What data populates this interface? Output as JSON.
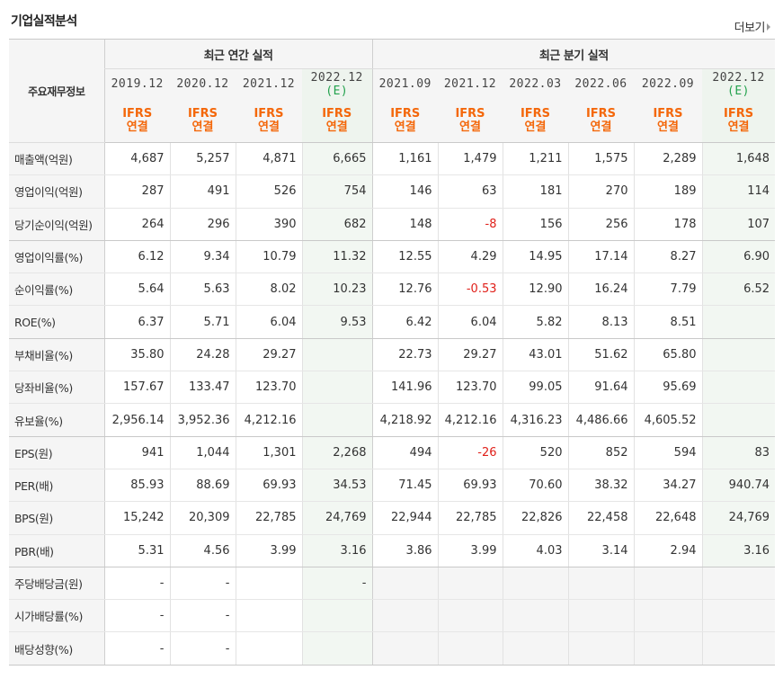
{
  "section_title": "기업실적분석",
  "more_label": "더보기",
  "corner_label": "주요재무정보",
  "group_headers": [
    "최근 연간 실적",
    "최근 분기 실적"
  ],
  "periods": [
    {
      "date": "2019.12",
      "est": ""
    },
    {
      "date": "2020.12",
      "est": ""
    },
    {
      "date": "2021.12",
      "est": ""
    },
    {
      "date": "2022.12",
      "est": "(E)"
    },
    {
      "date": "2021.09",
      "est": ""
    },
    {
      "date": "2021.12",
      "est": ""
    },
    {
      "date": "2022.03",
      "est": ""
    },
    {
      "date": "2022.06",
      "est": ""
    },
    {
      "date": "2022.09",
      "est": ""
    },
    {
      "date": "2022.12",
      "est": "(E)"
    }
  ],
  "basis": {
    "std": "IFRS",
    "type": "연결"
  },
  "rows": [
    {
      "label": "매출액(억원)",
      "values": [
        "4,687",
        "5,257",
        "4,871",
        "6,665",
        "1,161",
        "1,479",
        "1,211",
        "1,575",
        "2,289",
        "1,648"
      ]
    },
    {
      "label": "영업이익(억원)",
      "values": [
        "287",
        "491",
        "526",
        "754",
        "146",
        "63",
        "181",
        "270",
        "189",
        "114"
      ]
    },
    {
      "label": "당기순이익(억원)",
      "values": [
        "264",
        "296",
        "390",
        "682",
        "148",
        "-8",
        "156",
        "256",
        "178",
        "107"
      ]
    },
    {
      "label": "영업이익률(%)",
      "values": [
        "6.12",
        "9.34",
        "10.79",
        "11.32",
        "12.55",
        "4.29",
        "14.95",
        "17.14",
        "8.27",
        "6.90"
      ]
    },
    {
      "label": "순이익률(%)",
      "values": [
        "5.64",
        "5.63",
        "8.02",
        "10.23",
        "12.76",
        "-0.53",
        "12.90",
        "16.24",
        "7.79",
        "6.52"
      ]
    },
    {
      "label": "ROE(%)",
      "values": [
        "6.37",
        "5.71",
        "6.04",
        "9.53",
        "6.42",
        "6.04",
        "5.82",
        "8.13",
        "8.51",
        ""
      ]
    },
    {
      "label": "부채비율(%)",
      "values": [
        "35.80",
        "24.28",
        "29.27",
        "",
        "22.73",
        "29.27",
        "43.01",
        "51.62",
        "65.80",
        ""
      ]
    },
    {
      "label": "당좌비율(%)",
      "values": [
        "157.67",
        "133.47",
        "123.70",
        "",
        "141.96",
        "123.70",
        "99.05",
        "91.64",
        "95.69",
        ""
      ]
    },
    {
      "label": "유보율(%)",
      "values": [
        "2,956.14",
        "3,952.36",
        "4,212.16",
        "",
        "4,218.92",
        "4,212.16",
        "4,316.23",
        "4,486.66",
        "4,605.52",
        ""
      ]
    },
    {
      "label": "EPS(원)",
      "values": [
        "941",
        "1,044",
        "1,301",
        "2,268",
        "494",
        "-26",
        "520",
        "852",
        "594",
        "83"
      ]
    },
    {
      "label": "PER(배)",
      "values": [
        "85.93",
        "88.69",
        "69.93",
        "34.53",
        "71.45",
        "69.93",
        "70.60",
        "38.32",
        "34.27",
        "940.74"
      ]
    },
    {
      "label": "BPS(원)",
      "values": [
        "15,242",
        "20,309",
        "22,785",
        "24,769",
        "22,944",
        "22,785",
        "22,826",
        "22,458",
        "22,648",
        "24,769"
      ]
    },
    {
      "label": "PBR(배)",
      "values": [
        "5.31",
        "4.56",
        "3.99",
        "3.16",
        "3.86",
        "3.99",
        "4.03",
        "3.14",
        "2.94",
        "3.16"
      ]
    },
    {
      "label": "주당배당금(원)",
      "values": [
        "-",
        "-",
        "",
        "-",
        "",
        "",
        "",
        "",
        "",
        ""
      ]
    },
    {
      "label": "시가배당률(%)",
      "values": [
        "-",
        "-",
        "",
        "",
        "",
        "",
        "",
        "",
        "",
        ""
      ]
    },
    {
      "label": "배당성향(%)",
      "values": [
        "-",
        "-",
        "",
        "",
        "",
        "",
        "",
        "",
        "",
        ""
      ]
    }
  ],
  "colors": {
    "ifrs": "#f4670a",
    "estimate": "#23a24d",
    "negative": "#e0201a"
  }
}
